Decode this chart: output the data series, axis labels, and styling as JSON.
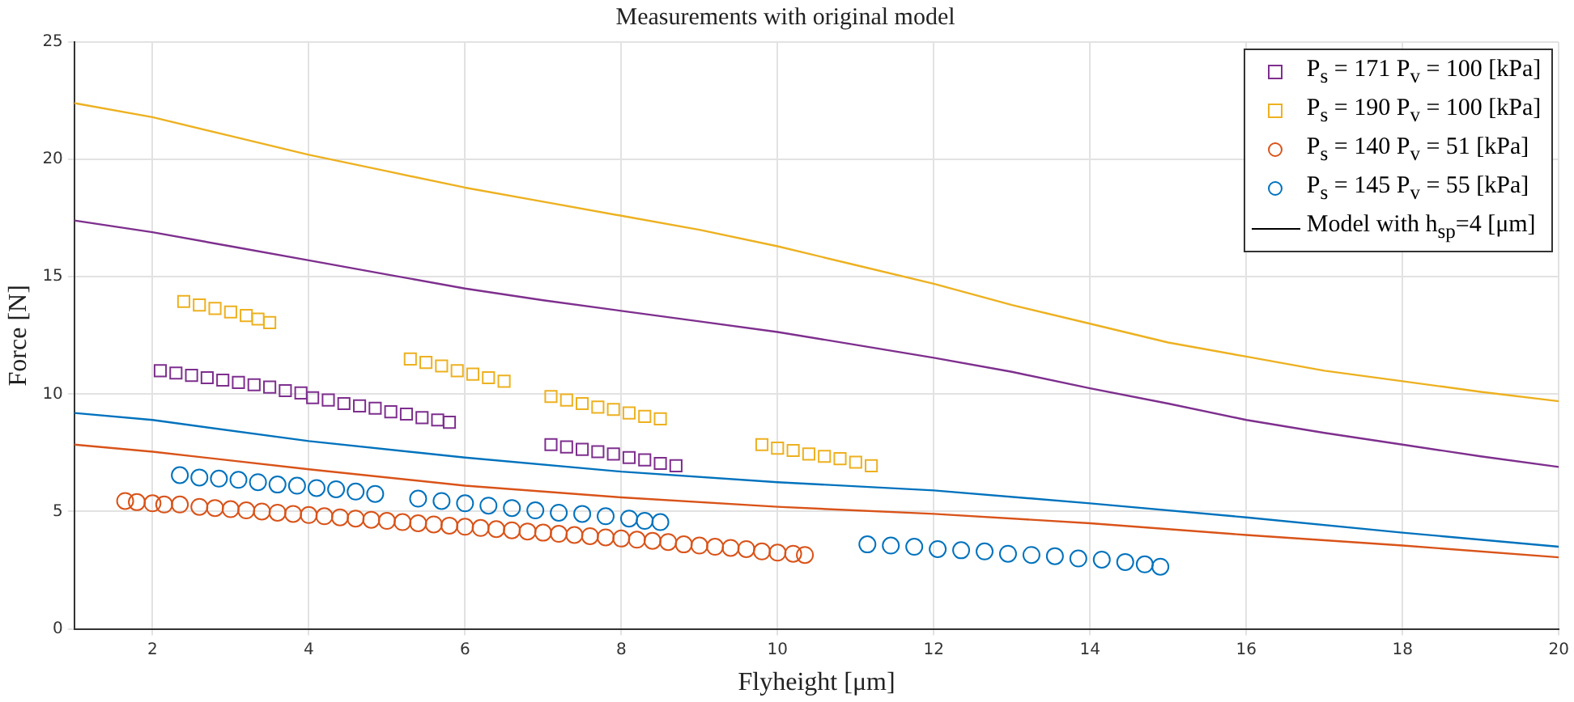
{
  "chart_data": {
    "type": "scatter",
    "title": "Measurements with original model",
    "xlabel": "Flyheight [μm]",
    "ylabel": "Force [N]",
    "xlim": [
      1,
      20
    ],
    "xticks": [
      2,
      4,
      6,
      8,
      10,
      12,
      14,
      16,
      18,
      20
    ],
    "ylim": [
      0,
      25
    ],
    "yticks": [
      0,
      5,
      10,
      15,
      20,
      25
    ],
    "grid": true,
    "legend": "top right",
    "series": [
      {
        "name": "P$_{s}$ = 171 P$_{v}$ = 100 [kPa]",
        "color": "#7e2f8e",
        "type": "scatter",
        "marker": "square",
        "x": [
          2.1,
          2.3,
          2.5,
          2.7,
          2.9,
          3.1,
          3.3,
          3.5,
          3.7,
          3.9,
          4.05,
          4.25,
          4.45,
          4.65,
          4.85,
          5.05,
          5.25,
          5.45,
          5.65,
          5.8,
          7.1,
          7.3,
          7.5,
          7.7,
          7.9,
          8.1,
          8.3,
          8.5,
          8.7
        ],
        "values": [
          11.0,
          10.9,
          10.8,
          10.7,
          10.6,
          10.5,
          10.4,
          10.3,
          10.15,
          10.05,
          9.85,
          9.75,
          9.6,
          9.5,
          9.4,
          9.25,
          9.15,
          9.0,
          8.9,
          8.8,
          7.85,
          7.75,
          7.65,
          7.55,
          7.45,
          7.3,
          7.2,
          7.05,
          6.95
        ]
      },
      {
        "name": "P$_{s}$ = 190 P$_{v}$ = 100 [kPa]",
        "color": "#edb120",
        "type": "scatter",
        "marker": "square",
        "x": [
          2.4,
          2.6,
          2.8,
          3.0,
          3.2,
          3.35,
          3.5,
          5.3,
          5.5,
          5.7,
          5.9,
          6.1,
          6.3,
          6.5,
          7.1,
          7.3,
          7.5,
          7.7,
          7.9,
          8.1,
          8.3,
          8.5,
          9.8,
          10.0,
          10.2,
          10.4,
          10.6,
          10.8,
          11.0,
          11.2
        ],
        "values": [
          13.95,
          13.8,
          13.65,
          13.5,
          13.35,
          13.2,
          13.05,
          11.5,
          11.35,
          11.2,
          11.0,
          10.85,
          10.7,
          10.55,
          9.9,
          9.75,
          9.6,
          9.45,
          9.35,
          9.2,
          9.05,
          8.95,
          7.85,
          7.7,
          7.6,
          7.45,
          7.35,
          7.25,
          7.1,
          6.95
        ]
      },
      {
        "name": "P$_{s}$ = 140 P$_{v}$ = 51 [kPa]",
        "color": "#d95319",
        "type": "scatter",
        "marker": "circle",
        "x": [
          1.65,
          1.8,
          2.0,
          2.15,
          2.35,
          2.6,
          2.8,
          3.0,
          3.2,
          3.4,
          3.6,
          3.8,
          4.0,
          4.2,
          4.4,
          4.6,
          4.8,
          5.0,
          5.2,
          5.4,
          5.6,
          5.8,
          6.0,
          6.2,
          6.4,
          6.6,
          6.8,
          7.0,
          7.2,
          7.4,
          7.6,
          7.8,
          8.0,
          8.2,
          8.4,
          8.6,
          8.8,
          9.0,
          9.2,
          9.4,
          9.6,
          9.8,
          10.0,
          10.2,
          10.35
        ],
        "values": [
          5.45,
          5.4,
          5.35,
          5.3,
          5.3,
          5.2,
          5.15,
          5.1,
          5.05,
          5.0,
          4.95,
          4.9,
          4.85,
          4.8,
          4.75,
          4.7,
          4.65,
          4.6,
          4.55,
          4.5,
          4.45,
          4.4,
          4.35,
          4.3,
          4.25,
          4.2,
          4.15,
          4.1,
          4.05,
          4.0,
          3.95,
          3.9,
          3.85,
          3.8,
          3.75,
          3.7,
          3.6,
          3.55,
          3.5,
          3.45,
          3.4,
          3.3,
          3.25,
          3.2,
          3.15
        ]
      },
      {
        "name": "P$_{s}$ = 145 P$_{v}$ = 55 [kPa]",
        "color": "#0072bd",
        "type": "scatter",
        "marker": "circle",
        "x": [
          2.35,
          2.6,
          2.85,
          3.1,
          3.35,
          3.6,
          3.85,
          4.1,
          4.35,
          4.6,
          4.85,
          5.4,
          5.7,
          6.0,
          6.3,
          6.6,
          6.9,
          7.2,
          7.5,
          7.8,
          8.1,
          8.3,
          8.5,
          11.15,
          11.45,
          11.75,
          12.05,
          12.35,
          12.65,
          12.95,
          13.25,
          13.55,
          13.85,
          14.15,
          14.45,
          14.7,
          14.9
        ],
        "values": [
          6.55,
          6.45,
          6.4,
          6.35,
          6.25,
          6.15,
          6.1,
          6.0,
          5.95,
          5.85,
          5.75,
          5.55,
          5.45,
          5.35,
          5.25,
          5.15,
          5.05,
          4.95,
          4.9,
          4.8,
          4.7,
          4.6,
          4.55,
          3.6,
          3.55,
          3.5,
          3.4,
          3.35,
          3.3,
          3.2,
          3.15,
          3.1,
          3.0,
          2.95,
          2.85,
          2.75,
          2.65
        ]
      },
      {
        "color": "#edb120",
        "type": "line",
        "x": [
          1,
          2,
          3,
          4,
          5,
          6,
          7,
          8,
          9,
          10,
          11,
          12,
          13,
          14,
          15,
          16,
          17,
          18,
          19,
          20
        ],
        "values": [
          22.4,
          21.8,
          21.0,
          20.2,
          19.5,
          18.8,
          18.2,
          17.6,
          17.0,
          16.3,
          15.5,
          14.7,
          13.8,
          13.0,
          12.2,
          11.6,
          11.0,
          10.55,
          10.1,
          9.7
        ]
      },
      {
        "color": "#7e2f8e",
        "type": "line",
        "x": [
          1,
          2,
          3,
          4,
          5,
          6,
          7,
          8,
          9,
          10,
          11,
          12,
          13,
          14,
          15,
          16,
          17,
          18,
          19,
          20
        ],
        "values": [
          17.4,
          16.9,
          16.3,
          15.7,
          15.1,
          14.5,
          14.0,
          13.55,
          13.1,
          12.65,
          12.1,
          11.55,
          10.95,
          10.25,
          9.6,
          8.9,
          8.35,
          7.85,
          7.35,
          6.9
        ]
      },
      {
        "color": "#0072bd",
        "type": "line",
        "x": [
          1,
          2,
          4,
          6,
          8,
          10,
          12,
          14,
          16,
          18,
          20
        ],
        "values": [
          9.2,
          8.9,
          8.0,
          7.3,
          6.7,
          6.25,
          5.9,
          5.35,
          4.75,
          4.1,
          3.5
        ]
      },
      {
        "color": "#d95319",
        "type": "line",
        "x": [
          1,
          2,
          4,
          6,
          8,
          10,
          12,
          14,
          16,
          18,
          20
        ],
        "values": [
          7.85,
          7.55,
          6.8,
          6.1,
          5.6,
          5.2,
          4.9,
          4.5,
          4.0,
          3.55,
          3.05
        ]
      },
      {
        "name": "Model with h$_{sp}$=4 [μm]",
        "color": "#000000",
        "type": "line"
      }
    ]
  }
}
